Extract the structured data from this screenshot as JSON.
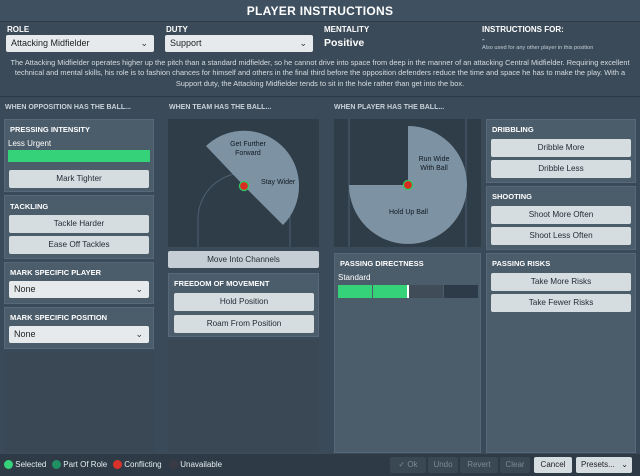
{
  "window": {
    "title": "PLAYER INSTRUCTIONS"
  },
  "header": {
    "role_label": "ROLE",
    "role_value": "Attacking Midfielder",
    "duty_label": "DUTY",
    "duty_value": "Support",
    "mentality_label": "MENTALITY",
    "mentality_value": "Positive",
    "instructions_for_label": "INSTRUCTIONS FOR:",
    "instructions_for_value": "-",
    "instructions_for_note": "Also used for any other player in this position"
  },
  "description": "The Attacking Midfielder operates higher up the pitch than a standard midfielder, so he cannot drive into space from deep in the manner of an attacking Central Midfielder. Requiring excellent technical and mental skills, his role is to fashion chances for himself and others in the final third before the opposition defenders reduce the time and space he has to make the play. With a Support duty, the Attacking Midfielder tends to sit in the hole rather than get into the box.",
  "sections": {
    "opposition": "WHEN OPPOSITION HAS THE BALL...",
    "team": "WHEN TEAM HAS THE BALL...",
    "player": "WHEN PLAYER HAS THE BALL..."
  },
  "pressing": {
    "title": "PRESSING INTENSITY",
    "value_label": "Less Urgent",
    "button": "Mark Tighter",
    "level": 1
  },
  "tackling": {
    "title": "TACKLING",
    "button1": "Tackle Harder",
    "button2": "Ease Off Tackles"
  },
  "mark_player": {
    "title": "MARK SPECIFIC PLAYER",
    "value": "None"
  },
  "mark_position": {
    "title": "MARK SPECIFIC POSITION",
    "value": "None"
  },
  "team_pitch": {
    "label1": "Get Further Forward",
    "label2": "Stay Wider",
    "button": "Move Into Channels"
  },
  "freedom": {
    "title": "FREEDOM OF MOVEMENT",
    "button1": "Hold Position",
    "button2": "Roam From Position"
  },
  "player_pitch": {
    "label1": "Run Wide With Ball",
    "label2": "Hold Up Ball"
  },
  "dribbling": {
    "title": "DRIBBLING",
    "button1": "Dribble More",
    "button2": "Dribble Less"
  },
  "shooting": {
    "title": "SHOOTING",
    "button1": "Shoot More Often",
    "button2": "Shoot Less Often"
  },
  "passing_directness": {
    "title": "PASSING DIRECTNESS",
    "value_label": "Standard",
    "level": 0.5
  },
  "passing_risks": {
    "title": "PASSING RISKS",
    "button1": "Take More Risks",
    "button2": "Take Fewer Risks"
  },
  "legend": {
    "selected": "Selected",
    "part_of_role": "Part Of Role",
    "conflicting": "Conflicting",
    "unavailable": "Unavailable",
    "colors": {
      "selected": "#35d27a",
      "part_of_role": "#1f8f64",
      "conflicting": "#d9322b",
      "unavailable": "#3a3a44"
    }
  },
  "footer": {
    "ok": "Ok",
    "undo": "Undo",
    "revert": "Revert",
    "clear": "Clear",
    "cancel": "Cancel",
    "presets": "Presets..."
  }
}
